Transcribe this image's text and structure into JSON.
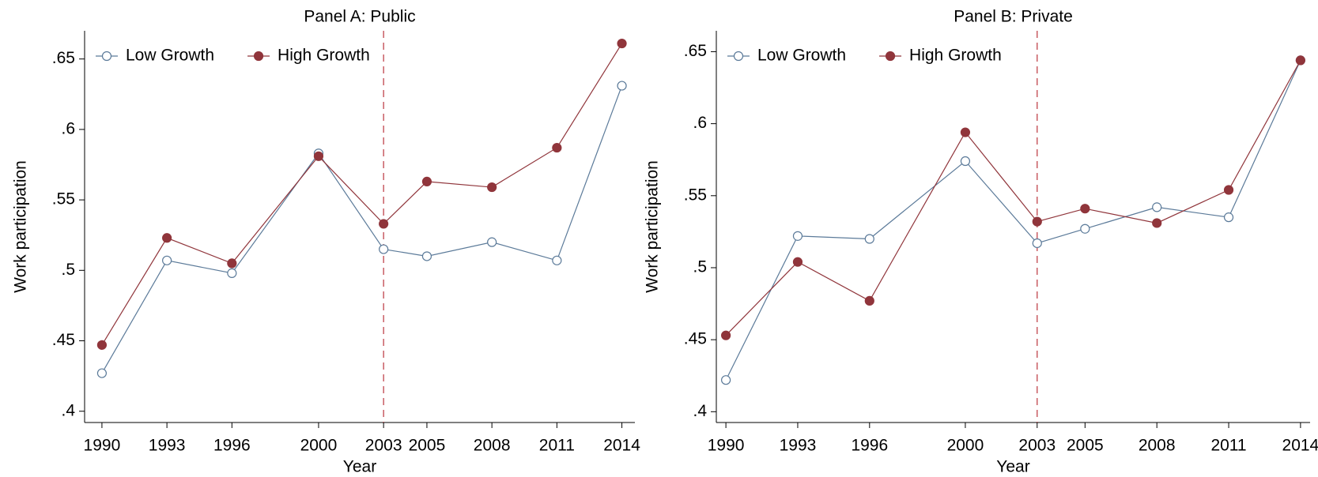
{
  "chart_data": [
    {
      "type": "line",
      "title": "Panel A: Public",
      "xlabel": "Year",
      "ylabel": "Work participation",
      "x": [
        1990,
        1993,
        1996,
        2000,
        2003,
        2005,
        2008,
        2011,
        2014
      ],
      "series": [
        {
          "name": "Low Growth",
          "color": "#5b7a99",
          "marker": "hollow",
          "values": [
            0.427,
            0.507,
            0.498,
            0.583,
            0.515,
            0.51,
            0.52,
            0.507,
            0.631
          ]
        },
        {
          "name": "High Growth",
          "color": "#90353b",
          "marker": "filled",
          "values": [
            0.447,
            0.523,
            0.505,
            0.581,
            0.533,
            0.563,
            0.559,
            0.587,
            0.661
          ]
        }
      ],
      "xlim": [
        1989.2,
        2014.6
      ],
      "xticks": [
        1990,
        1993,
        1996,
        2000,
        2003,
        2005,
        2008,
        2011,
        2014
      ],
      "ylim": [
        0.392,
        0.67
      ],
      "yticks": [
        {
          "value": 0.4,
          "label": ".4"
        },
        {
          "value": 0.45,
          "label": ".45"
        },
        {
          "value": 0.5,
          "label": ".5"
        },
        {
          "value": 0.55,
          "label": ".55"
        },
        {
          "value": 0.6,
          "label": ".6"
        },
        {
          "value": 0.65,
          "label": ".65"
        }
      ],
      "vline": 2003,
      "vline_color": "#c0444c",
      "legend": "upper left"
    },
    {
      "type": "line",
      "title": "Panel B: Private",
      "xlabel": "Year",
      "ylabel": "Work participation",
      "x": [
        1990,
        1993,
        1996,
        2000,
        2003,
        2005,
        2008,
        2011,
        2014
      ],
      "series": [
        {
          "name": "Low Growth",
          "color": "#5b7a99",
          "marker": "hollow",
          "values": [
            0.422,
            0.522,
            0.52,
            0.574,
            0.517,
            0.527,
            0.542,
            0.535,
            0.644
          ]
        },
        {
          "name": "High Growth",
          "color": "#90353b",
          "marker": "filled",
          "values": [
            0.453,
            0.504,
            0.477,
            0.594,
            0.532,
            0.541,
            0.531,
            0.554,
            0.644
          ]
        }
      ],
      "xlim": [
        1989.6,
        2014.4
      ],
      "xticks": [
        1990,
        1993,
        1996,
        2000,
        2003,
        2005,
        2008,
        2011,
        2014
      ],
      "ylim": [
        0.3925,
        0.6645
      ],
      "yticks": [
        {
          "value": 0.4,
          "label": ".4"
        },
        {
          "value": 0.45,
          "label": ".45"
        },
        {
          "value": 0.5,
          "label": ".5"
        },
        {
          "value": 0.55,
          "label": ".55"
        },
        {
          "value": 0.6,
          "label": ".6"
        },
        {
          "value": 0.65,
          "label": ".65"
        }
      ],
      "vline": 2003,
      "vline_color": "#c0444c",
      "legend": "upper left"
    }
  ]
}
